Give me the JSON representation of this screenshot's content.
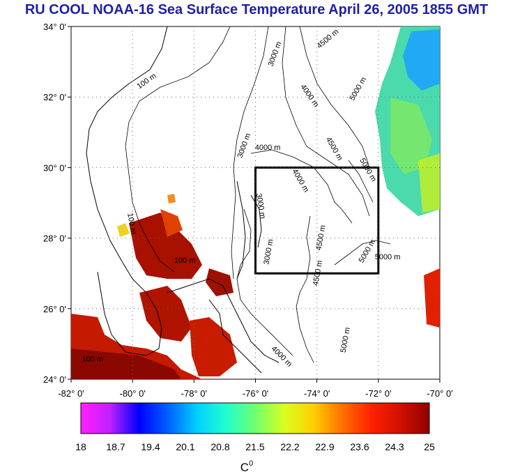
{
  "title": "RU COOL  NOAA-16 Sea Surface Temperature April 26, 2005 1855 GMT",
  "map": {
    "lon_ticks": [
      "-82° 0'",
      "-80° 0'",
      "-78° 0'",
      "-76° 0'",
      "-74° 0'",
      "-72° 0'",
      "-70° 0'"
    ],
    "lat_ticks": [
      "34° 0'",
      "32° 0'",
      "30° 0'",
      "28° 0'",
      "26° 0'",
      "24° 0'"
    ],
    "lon_range": [
      -82,
      -70
    ],
    "lat_range": [
      24,
      34
    ],
    "study_box": {
      "lon": [
        -76,
        -72
      ],
      "lat": [
        27,
        30
      ]
    },
    "contour_labels": [
      {
        "text": "100 m",
        "lon": -79.5,
        "lat": 32.4,
        "rot": -35
      },
      {
        "text": "100 m",
        "lon": -80.1,
        "lat": 28.4,
        "rot": 80
      },
      {
        "text": "100 m",
        "lon": -78.3,
        "lat": 27.3,
        "rot": 0
      },
      {
        "text": "100 m",
        "lon": -81.3,
        "lat": 24.5,
        "rot": 0
      },
      {
        "text": "3000 m",
        "lon": -75.3,
        "lat": 33.2,
        "rot": -70
      },
      {
        "text": "4500 m",
        "lon": -73.6,
        "lat": 33.6,
        "rot": -40
      },
      {
        "text": "5000 m",
        "lon": -72.6,
        "lat": 32.2,
        "rot": -60
      },
      {
        "text": "4000 m",
        "lon": -74.3,
        "lat": 32.0,
        "rot": 55
      },
      {
        "text": "3000 m",
        "lon": -76.3,
        "lat": 30.6,
        "rot": -70
      },
      {
        "text": "4000 m",
        "lon": -75.6,
        "lat": 30.5,
        "rot": 0
      },
      {
        "text": "4500 m",
        "lon": -73.5,
        "lat": 30.5,
        "rot": 60
      },
      {
        "text": "5000 m",
        "lon": -72.4,
        "lat": 29.9,
        "rot": 60
      },
      {
        "text": "4000 m",
        "lon": -74.6,
        "lat": 29.6,
        "rot": 60
      },
      {
        "text": "4500 m",
        "lon": -73.8,
        "lat": 28.0,
        "rot": -80
      },
      {
        "text": "4500 m",
        "lon": -73.9,
        "lat": 27.0,
        "rot": -80
      },
      {
        "text": "5000 m",
        "lon": -72.3,
        "lat": 27.6,
        "rot": -60
      },
      {
        "text": "5000 m",
        "lon": -71.7,
        "lat": 27.4,
        "rot": 0
      },
      {
        "text": "5000 m",
        "lon": -73.0,
        "lat": 25.1,
        "rot": -80
      },
      {
        "text": "3000 m",
        "lon": -75.9,
        "lat": 28.9,
        "rot": 80
      },
      {
        "text": "3000 m",
        "lon": -75.5,
        "lat": 27.6,
        "rot": -80
      },
      {
        "text": "4000 m",
        "lon": -75.2,
        "lat": 24.6,
        "rot": 45
      }
    ],
    "colors": {
      "land_line": "#000000",
      "grid_dot": "#666666",
      "box": "#000000"
    }
  },
  "colorbar": {
    "tick_labels": [
      "18",
      "18.7",
      "19.4",
      "20.1",
      "20.8",
      "21.5",
      "22.2",
      "22.9",
      "23.6",
      "24.3",
      "25"
    ],
    "unit_base": "C",
    "unit_sup": "0",
    "colors": [
      "#ff20ff",
      "#c020ff",
      "#0000ff",
      "#0060ff",
      "#00d0ff",
      "#20ffd0",
      "#70ff70",
      "#d8ff20",
      "#ffd000",
      "#ff7000",
      "#ff2000",
      "#d01000",
      "#900000"
    ]
  }
}
